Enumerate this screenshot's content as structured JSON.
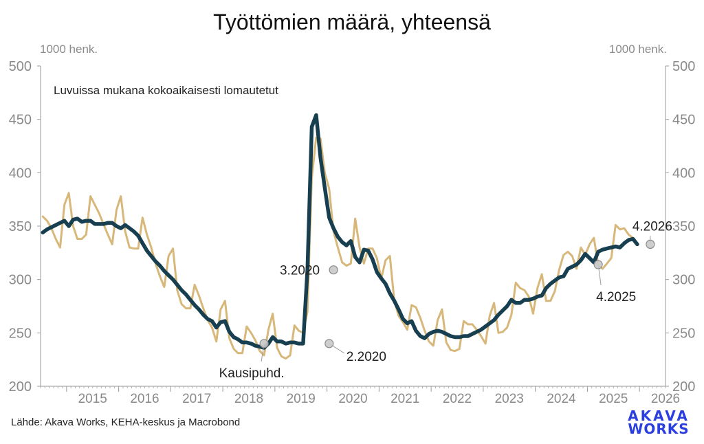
{
  "chart_data": {
    "type": "line",
    "title": "Työttömien määrä, yhteensä",
    "ylabel_left": "1000 henk.",
    "ylabel_right": "1000 henk.",
    "subtitle": "Luvuissa mukana kokoaikaisesti lomautetut",
    "ylim": [
      200,
      500
    ],
    "yticks": [
      200,
      250,
      300,
      350,
      400,
      450,
      500
    ],
    "xlim": [
      2014.5,
      2026.5
    ],
    "xticks": [
      "2015",
      "2016",
      "2017",
      "2018",
      "2019",
      "2020",
      "2021",
      "2022",
      "2023",
      "2024",
      "2025",
      "2026"
    ],
    "grid": false,
    "series": [
      {
        "name": "",
        "color": "#d8b87a",
        "x": [
          2014.542,
          2014.625,
          2014.708,
          2014.792,
          2014.875,
          2014.958,
          2015.042,
          2015.125,
          2015.208,
          2015.292,
          2015.375,
          2015.458,
          2015.542,
          2015.625,
          2015.708,
          2015.792,
          2015.875,
          2015.958,
          2016.042,
          2016.125,
          2016.208,
          2016.292,
          2016.375,
          2016.458,
          2016.542,
          2016.625,
          2016.708,
          2016.792,
          2016.875,
          2016.958,
          2017.042,
          2017.125,
          2017.208,
          2017.292,
          2017.375,
          2017.458,
          2017.542,
          2017.625,
          2017.708,
          2017.792,
          2017.875,
          2017.958,
          2018.042,
          2018.125,
          2018.208,
          2018.292,
          2018.375,
          2018.458,
          2018.542,
          2018.625,
          2018.708,
          2018.792,
          2018.875,
          2018.958,
          2019.042,
          2019.125,
          2019.208,
          2019.292,
          2019.375,
          2019.458,
          2019.542,
          2019.625,
          2019.708,
          2019.792,
          2019.875,
          2019.958,
          2020.042,
          2020.125,
          2020.208,
          2020.292,
          2020.375,
          2020.458,
          2020.542,
          2020.625,
          2020.708,
          2020.792,
          2020.875,
          2020.958,
          2021.042,
          2021.125,
          2021.208,
          2021.292,
          2021.375,
          2021.458,
          2021.542,
          2021.625,
          2021.708,
          2021.792,
          2021.875,
          2021.958,
          2022.042,
          2022.125,
          2022.208,
          2022.292,
          2022.375,
          2022.458,
          2022.542,
          2022.625,
          2022.708,
          2022.792,
          2022.875,
          2022.958,
          2023.042,
          2023.125,
          2023.208,
          2023.292,
          2023.375,
          2023.458,
          2023.542,
          2023.625,
          2023.708,
          2023.792,
          2023.875,
          2023.958,
          2024.042,
          2024.125,
          2024.208,
          2024.292,
          2024.375,
          2024.458,
          2024.542,
          2024.625,
          2024.708,
          2024.792,
          2024.875,
          2024.958,
          2025.042,
          2025.125,
          2025.208,
          2025.292,
          2025.375,
          2025.458,
          2025.542,
          2025.625,
          2025.708,
          2025.792,
          2025.875,
          2025.958
        ],
        "values": [
          359,
          355,
          348,
          338,
          330,
          370,
          381,
          350,
          338,
          338,
          342,
          378,
          370,
          362,
          352,
          342,
          333,
          365,
          378,
          345,
          330,
          329,
          329,
          358,
          342,
          330,
          315,
          303,
          293,
          322,
          329,
          290,
          277,
          273,
          273,
          295,
          285,
          273,
          262,
          255,
          242,
          272,
          280,
          245,
          235,
          231,
          231,
          256,
          250,
          243,
          233,
          229,
          253,
          268,
          236,
          228,
          226,
          229,
          257,
          252,
          250,
          270,
          395,
          433,
          432,
          400,
          385,
          345,
          330,
          316,
          313,
          315,
          357,
          330,
          315,
          329,
          329,
          320,
          301,
          318,
          322,
          280,
          266,
          260,
          253,
          276,
          274,
          264,
          252,
          242,
          238,
          262,
          272,
          241,
          234,
          233,
          235,
          261,
          258,
          258,
          253,
          247,
          240,
          266,
          278,
          250,
          251,
          255,
          267,
          297,
          292,
          290,
          284,
          268,
          292,
          305,
          280,
          280,
          289,
          309,
          323,
          326,
          322,
          310,
          330,
          323,
          333,
          339,
          314,
          310,
          315,
          320,
          351,
          347,
          348,
          342,
          339,
          333
        ]
      },
      {
        "name": "Kausipuhd.",
        "color": "#173f50",
        "x": [
          2014.542,
          2014.625,
          2014.708,
          2014.792,
          2014.875,
          2014.958,
          2015.042,
          2015.125,
          2015.208,
          2015.292,
          2015.375,
          2015.458,
          2015.542,
          2015.625,
          2015.708,
          2015.792,
          2015.875,
          2015.958,
          2016.042,
          2016.125,
          2016.208,
          2016.292,
          2016.375,
          2016.458,
          2016.542,
          2016.625,
          2016.708,
          2016.792,
          2016.875,
          2016.958,
          2017.042,
          2017.125,
          2017.208,
          2017.292,
          2017.375,
          2017.458,
          2017.542,
          2017.625,
          2017.708,
          2017.792,
          2017.875,
          2017.958,
          2018.042,
          2018.125,
          2018.208,
          2018.292,
          2018.375,
          2018.458,
          2018.542,
          2018.625,
          2018.708,
          2018.792,
          2018.875,
          2018.958,
          2019.042,
          2019.125,
          2019.208,
          2019.292,
          2019.375,
          2019.458,
          2019.542,
          2019.625,
          2019.708,
          2019.792,
          2019.875,
          2019.958,
          2020.042,
          2020.125,
          2020.208,
          2020.292,
          2020.375,
          2020.458,
          2020.542,
          2020.625,
          2020.708,
          2020.792,
          2020.875,
          2020.958,
          2021.042,
          2021.125,
          2021.208,
          2021.292,
          2021.375,
          2021.458,
          2021.542,
          2021.625,
          2021.708,
          2021.792,
          2021.875,
          2021.958,
          2022.042,
          2022.125,
          2022.208,
          2022.292,
          2022.375,
          2022.458,
          2022.542,
          2022.625,
          2022.708,
          2022.792,
          2022.875,
          2022.958,
          2023.042,
          2023.125,
          2023.208,
          2023.292,
          2023.375,
          2023.458,
          2023.542,
          2023.625,
          2023.708,
          2023.792,
          2023.875,
          2023.958,
          2024.042,
          2024.125,
          2024.208,
          2024.292,
          2024.375,
          2024.458,
          2024.542,
          2024.625,
          2024.708,
          2024.792,
          2024.875,
          2024.958,
          2025.042,
          2025.125,
          2025.208,
          2025.292,
          2025.375,
          2025.458,
          2025.542,
          2025.625,
          2025.708,
          2025.792,
          2025.875,
          2025.958
        ],
        "values": [
          344,
          347,
          349,
          351,
          353,
          355,
          350,
          356,
          357,
          354,
          355,
          355,
          352,
          352,
          352,
          353,
          353,
          350,
          348,
          351,
          348,
          345,
          341,
          334,
          327,
          322,
          317,
          313,
          308,
          304,
          300,
          295,
          290,
          286,
          281,
          276,
          272,
          267,
          263,
          261,
          255,
          260,
          261,
          251,
          246,
          244,
          241,
          241,
          240,
          238,
          237,
          236,
          240,
          246,
          242,
          242,
          240,
          241,
          241,
          240,
          240,
          309,
          443,
          454,
          414,
          386,
          358,
          348,
          340,
          335,
          332,
          336,
          321,
          316,
          328,
          327,
          319,
          307,
          301,
          296,
          287,
          280,
          272,
          263,
          259,
          261,
          252,
          247,
          245,
          249,
          251,
          252,
          251,
          249,
          247,
          246,
          246,
          247,
          247,
          249,
          251,
          253,
          256,
          259,
          262,
          267,
          271,
          275,
          281,
          278,
          278,
          281,
          281,
          282,
          284,
          285,
          292,
          296,
          299,
          302,
          303,
          310,
          312,
          314,
          318,
          324,
          320,
          316,
          326,
          328,
          329,
          330,
          331,
          330,
          334,
          337,
          338,
          333
        ]
      }
    ],
    "annotations": [
      {
        "label": "3.2020",
        "x": 2020.125,
        "y": 309
      },
      {
        "label": "2.2020",
        "x": 2020.042,
        "y": 240
      },
      {
        "label": "Kausipuhd.",
        "x": 2018.792,
        "y": 240
      },
      {
        "label": "4.2025",
        "x": 2025.208,
        "y": 314
      },
      {
        "label": "4.2026",
        "x": 2026.208,
        "y": 333
      }
    ]
  },
  "source_note": "Lähde: Akava Works, KEHA-keskus ja Macrobond",
  "logo": {
    "line1": "AKAVA",
    "line2": "WORKS",
    "color": "#2b3fe0"
  }
}
